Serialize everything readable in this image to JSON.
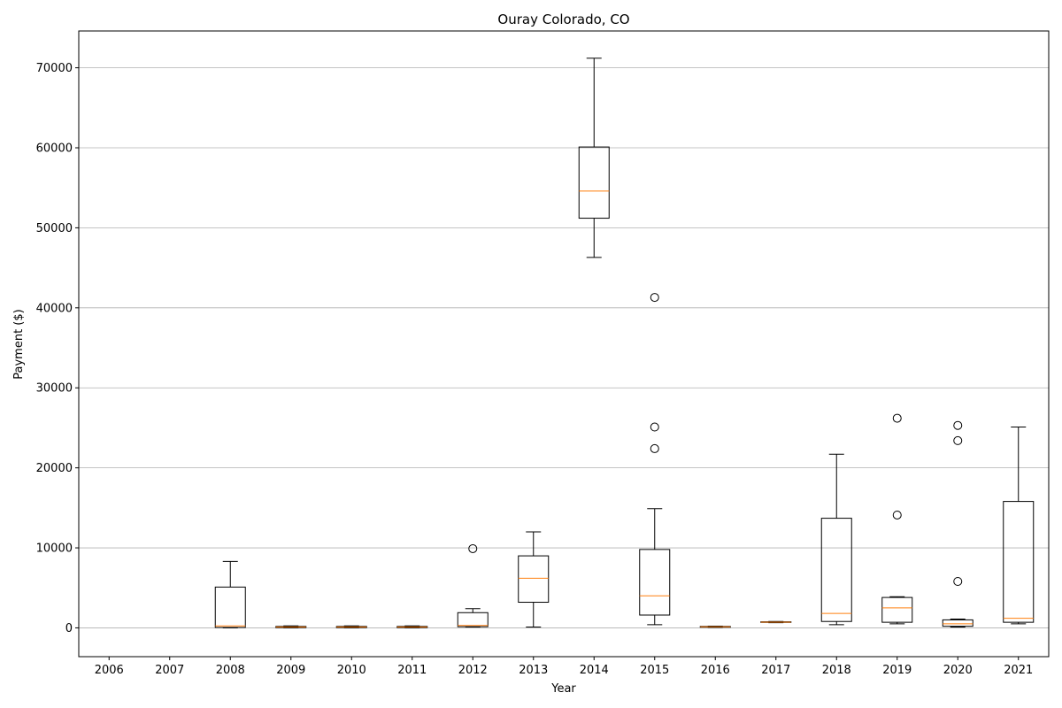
{
  "chart_data": {
    "type": "box",
    "title": "Ouray Colorado, CO",
    "xlabel": "Year",
    "ylabel": "Payment ($)",
    "ylim": [
      -3600,
      74600
    ],
    "yticks": [
      0,
      10000,
      20000,
      30000,
      40000,
      50000,
      60000,
      70000
    ],
    "grid": "horizontal",
    "colors": {
      "box": "#000000",
      "median": "#ff7f0e",
      "grid": "#b0b0b0"
    },
    "categories": [
      "2006",
      "2007",
      "2008",
      "2009",
      "2010",
      "2011",
      "2012",
      "2013",
      "2014",
      "2015",
      "2016",
      "2017",
      "2018",
      "2019",
      "2020",
      "2021"
    ],
    "boxes": [
      {
        "year": "2006",
        "empty": true
      },
      {
        "year": "2007",
        "empty": true
      },
      {
        "year": "2008",
        "whislo": 0,
        "q1": 50,
        "median": 250,
        "q3": 5100,
        "whishi": 8300,
        "fliers": []
      },
      {
        "year": "2009",
        "whislo": 0,
        "q1": 30,
        "median": 100,
        "q3": 180,
        "whishi": 250,
        "fliers": []
      },
      {
        "year": "2010",
        "whislo": 0,
        "q1": 30,
        "median": 100,
        "q3": 180,
        "whishi": 250,
        "fliers": []
      },
      {
        "year": "2011",
        "whislo": 0,
        "q1": 30,
        "median": 100,
        "q3": 180,
        "whishi": 250,
        "fliers": []
      },
      {
        "year": "2012",
        "whislo": 100,
        "q1": 150,
        "median": 300,
        "q3": 1900,
        "whishi": 2400,
        "fliers": [
          9900
        ]
      },
      {
        "year": "2013",
        "whislo": 100,
        "q1": 3200,
        "median": 6200,
        "q3": 9000,
        "whishi": 12000,
        "fliers": []
      },
      {
        "year": "2014",
        "whislo": 46300,
        "q1": 51200,
        "median": 54600,
        "q3": 60100,
        "whishi": 71200,
        "fliers": []
      },
      {
        "year": "2015",
        "whislo": 400,
        "q1": 1600,
        "median": 4000,
        "q3": 9800,
        "whishi": 14900,
        "fliers": [
          22400,
          25100,
          41300
        ]
      },
      {
        "year": "2016",
        "whislo": 50,
        "q1": 80,
        "median": 130,
        "q3": 180,
        "whishi": 220,
        "fliers": []
      },
      {
        "year": "2017",
        "whislo": 650,
        "q1": 680,
        "median": 720,
        "q3": 760,
        "whishi": 790,
        "fliers": []
      },
      {
        "year": "2018",
        "whislo": 400,
        "q1": 800,
        "median": 1800,
        "q3": 13700,
        "whishi": 21700,
        "fliers": []
      },
      {
        "year": "2019",
        "whislo": 500,
        "q1": 700,
        "median": 2500,
        "q3": 3800,
        "whishi": 3900,
        "fliers": [
          14100,
          26200
        ]
      },
      {
        "year": "2020",
        "whislo": 100,
        "q1": 200,
        "median": 500,
        "q3": 1000,
        "whishi": 1100,
        "fliers": [
          5800,
          23400,
          25300
        ]
      },
      {
        "year": "2021",
        "whislo": 500,
        "q1": 700,
        "median": 1200,
        "q3": 15800,
        "whishi": 25100,
        "fliers": []
      }
    ]
  }
}
